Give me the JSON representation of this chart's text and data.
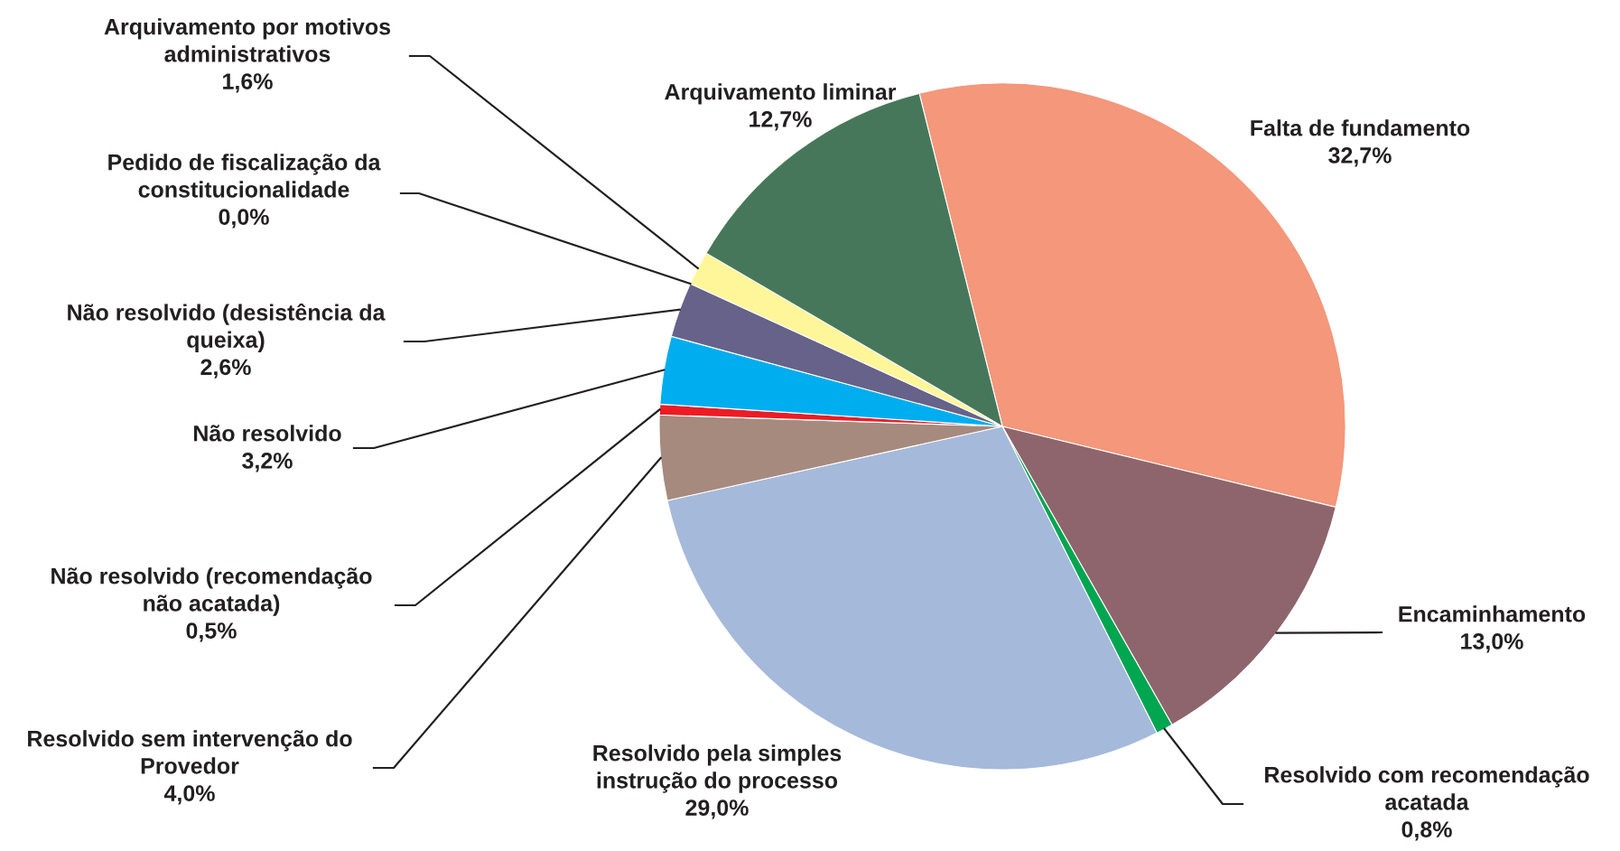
{
  "chart_data": {
    "type": "pie",
    "categories": [
      "Falta de fundamento",
      "Encaminhamento",
      "Resolvido com recomendação\nacatada",
      "Resolvido pela simples\ninstrução do processo",
      "Resolvido sem intervenção do\nProvedor",
      "Não resolvido (recomendação\nnão acatada)",
      "Não resolvido",
      "Não resolvido (desistência da\nqueixa)",
      "Pedido de fiscalização da\nconstitucionalidade",
      "Arquivamento por motivos\nadministrativos",
      "Arquivamento liminar"
    ],
    "values": [
      32.7,
      13.0,
      0.8,
      29.0,
      4.0,
      0.5,
      3.2,
      2.6,
      0.0,
      1.6,
      12.7
    ],
    "value_labels": [
      "32,7%",
      "13,0%",
      "0,8%",
      "29,0%",
      "4,0%",
      "0,5%",
      "3,2%",
      "2,6%",
      "0,0%",
      "1,6%",
      "12,7%"
    ],
    "colors": [
      "#f4977a",
      "#8e656c",
      "#00a650",
      "#a5b9da",
      "#a68a7e",
      "#ed1c24",
      "#00aeef",
      "#666289",
      null,
      "#fff599",
      "#47775a"
    ]
  }
}
